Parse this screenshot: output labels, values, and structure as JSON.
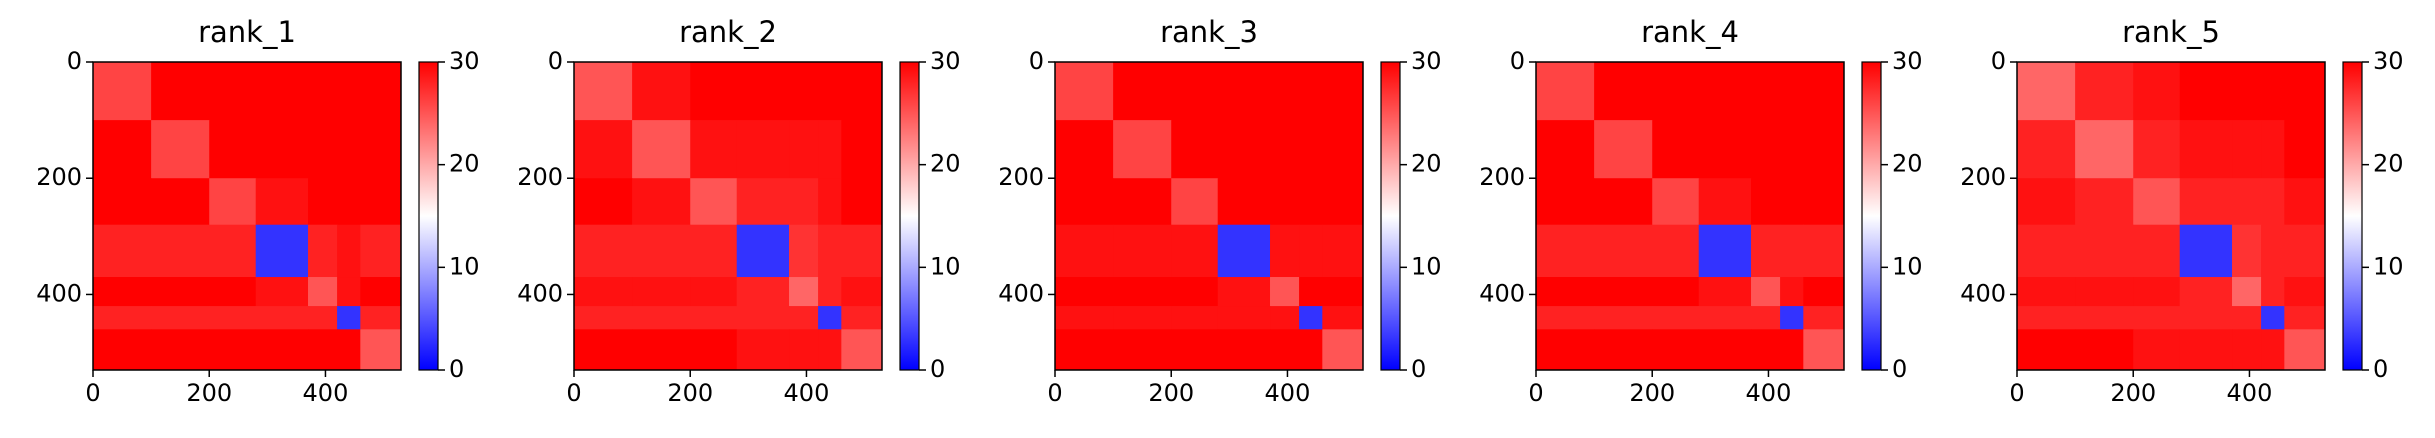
{
  "chart_data": [
    {
      "type": "heatmap",
      "title": "rank_1",
      "x_edges": [
        0,
        100,
        200,
        280,
        370,
        420,
        460,
        530
      ],
      "y_edges": [
        0,
        100,
        200,
        280,
        370,
        420,
        460,
        530
      ],
      "values": [
        [
          26,
          30,
          30,
          30,
          30,
          30,
          30
        ],
        [
          30,
          26,
          30,
          30,
          30,
          30,
          30
        ],
        [
          30,
          30,
          26,
          29,
          30,
          30,
          30
        ],
        [
          28,
          28,
          28,
          3,
          28,
          29,
          28
        ],
        [
          30,
          30,
          30,
          29,
          25,
          29,
          30
        ],
        [
          28,
          28,
          28,
          28,
          28,
          3,
          28
        ],
        [
          30,
          30,
          30,
          30,
          30,
          30,
          25
        ]
      ],
      "xlim": [
        0,
        530
      ],
      "ylim": [
        530,
        0
      ],
      "xticks": [
        0,
        200,
        400
      ],
      "yticks": [
        0,
        200,
        400
      ],
      "clim": [
        0,
        30
      ],
      "cticks": [
        0,
        10,
        20,
        30
      ],
      "colormap": [
        "#0000ff",
        "#ffffff",
        "#ff0000"
      ]
    },
    {
      "type": "heatmap",
      "title": "rank_2",
      "x_edges": [
        0,
        100,
        200,
        280,
        370,
        420,
        460,
        530
      ],
      "y_edges": [
        0,
        100,
        200,
        280,
        370,
        420,
        460,
        530
      ],
      "values": [
        [
          25,
          29,
          30,
          30,
          30,
          30,
          30
        ],
        [
          29,
          25,
          29,
          29,
          29,
          29,
          30
        ],
        [
          30,
          29,
          25,
          28,
          28,
          29,
          30
        ],
        [
          28,
          28,
          28,
          3,
          27,
          28,
          28
        ],
        [
          29,
          29,
          29,
          28,
          24,
          28,
          29
        ],
        [
          28,
          28,
          28,
          28,
          28,
          3,
          28
        ],
        [
          30,
          30,
          30,
          29,
          29,
          29,
          25
        ]
      ],
      "xlim": [
        0,
        530
      ],
      "ylim": [
        530,
        0
      ],
      "xticks": [
        0,
        200,
        400
      ],
      "yticks": [
        0,
        200,
        400
      ],
      "clim": [
        0,
        30
      ],
      "cticks": [
        0,
        10,
        20,
        30
      ],
      "colormap": [
        "#0000ff",
        "#ffffff",
        "#ff0000"
      ]
    },
    {
      "type": "heatmap",
      "title": "rank_3",
      "x_edges": [
        0,
        100,
        200,
        280,
        370,
        420,
        460,
        530
      ],
      "y_edges": [
        0,
        100,
        200,
        280,
        370,
        420,
        460,
        530
      ],
      "values": [
        [
          26,
          30,
          30,
          30,
          30,
          30,
          30
        ],
        [
          30,
          26,
          30,
          30,
          30,
          30,
          30
        ],
        [
          30,
          30,
          26,
          30,
          30,
          30,
          30
        ],
        [
          29,
          29,
          29,
          3,
          29,
          29,
          29
        ],
        [
          30,
          30,
          30,
          29,
          25,
          30,
          30
        ],
        [
          29,
          29,
          29,
          29,
          29,
          3,
          29
        ],
        [
          30,
          30,
          30,
          30,
          30,
          30,
          25
        ]
      ],
      "xlim": [
        0,
        530
      ],
      "ylim": [
        530,
        0
      ],
      "xticks": [
        0,
        200,
        400
      ],
      "yticks": [
        0,
        200,
        400
      ],
      "clim": [
        0,
        30
      ],
      "cticks": [
        0,
        10,
        20,
        30
      ],
      "colormap": [
        "#0000ff",
        "#ffffff",
        "#ff0000"
      ]
    },
    {
      "type": "heatmap",
      "title": "rank_4",
      "x_edges": [
        0,
        100,
        200,
        280,
        370,
        420,
        460,
        530
      ],
      "y_edges": [
        0,
        100,
        200,
        280,
        370,
        420,
        460,
        530
      ],
      "values": [
        [
          26,
          30,
          30,
          30,
          30,
          30,
          30
        ],
        [
          30,
          26,
          30,
          30,
          30,
          30,
          30
        ],
        [
          30,
          30,
          26,
          29,
          30,
          30,
          30
        ],
        [
          28,
          28,
          28,
          3,
          28,
          28,
          28
        ],
        [
          30,
          30,
          30,
          29,
          25,
          29,
          30
        ],
        [
          28,
          28,
          28,
          28,
          28,
          3,
          28
        ],
        [
          30,
          30,
          30,
          30,
          30,
          30,
          25
        ]
      ],
      "xlim": [
        0,
        530
      ],
      "ylim": [
        530,
        0
      ],
      "xticks": [
        0,
        200,
        400
      ],
      "yticks": [
        0,
        200,
        400
      ],
      "clim": [
        0,
        30
      ],
      "cticks": [
        0,
        10,
        20,
        30
      ],
      "colormap": [
        "#0000ff",
        "#ffffff",
        "#ff0000"
      ]
    },
    {
      "type": "heatmap",
      "title": "rank_5",
      "x_edges": [
        0,
        100,
        200,
        280,
        370,
        420,
        460,
        530
      ],
      "y_edges": [
        0,
        100,
        200,
        280,
        370,
        420,
        460,
        530
      ],
      "values": [
        [
          24,
          28,
          29,
          30,
          30,
          30,
          30
        ],
        [
          28,
          24,
          28,
          29,
          29,
          29,
          30
        ],
        [
          29,
          28,
          25,
          28,
          28,
          28,
          29
        ],
        [
          28,
          28,
          28,
          3,
          27,
          28,
          28
        ],
        [
          29,
          29,
          29,
          28,
          24,
          28,
          29
        ],
        [
          28,
          28,
          28,
          28,
          28,
          3,
          28
        ],
        [
          30,
          30,
          29,
          29,
          29,
          29,
          25
        ]
      ],
      "xlim": [
        0,
        530
      ],
      "ylim": [
        530,
        0
      ],
      "xticks": [
        0,
        200,
        400
      ],
      "yticks": [
        0,
        200,
        400
      ],
      "clim": [
        0,
        30
      ],
      "cticks": [
        0,
        10,
        20,
        30
      ],
      "colormap": [
        "#0000ff",
        "#ffffff",
        "#ff0000"
      ]
    }
  ]
}
